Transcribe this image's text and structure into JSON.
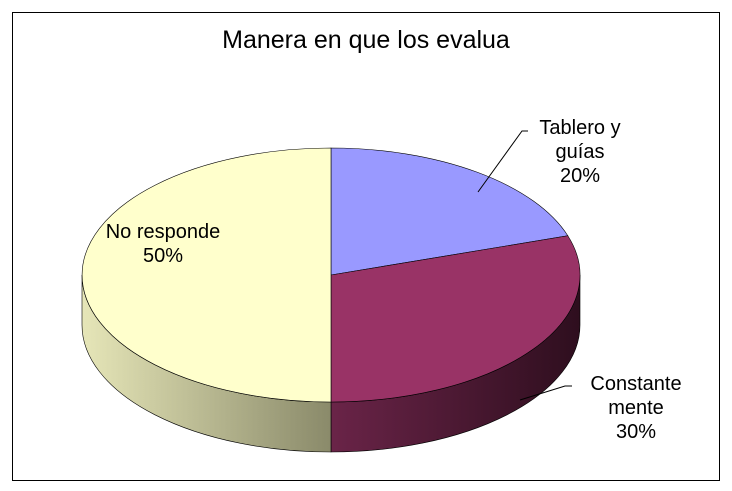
{
  "chart_data": {
    "type": "pie",
    "title": "Manera en que los evalua",
    "categories": [
      "Tablero y guías",
      "Constante mente",
      "No responde"
    ],
    "values": [
      20,
      30,
      50
    ],
    "value_labels": [
      "20%",
      "30%",
      "50%"
    ],
    "colors": [
      "#9999ff",
      "#993366",
      "#ffffcc"
    ]
  }
}
